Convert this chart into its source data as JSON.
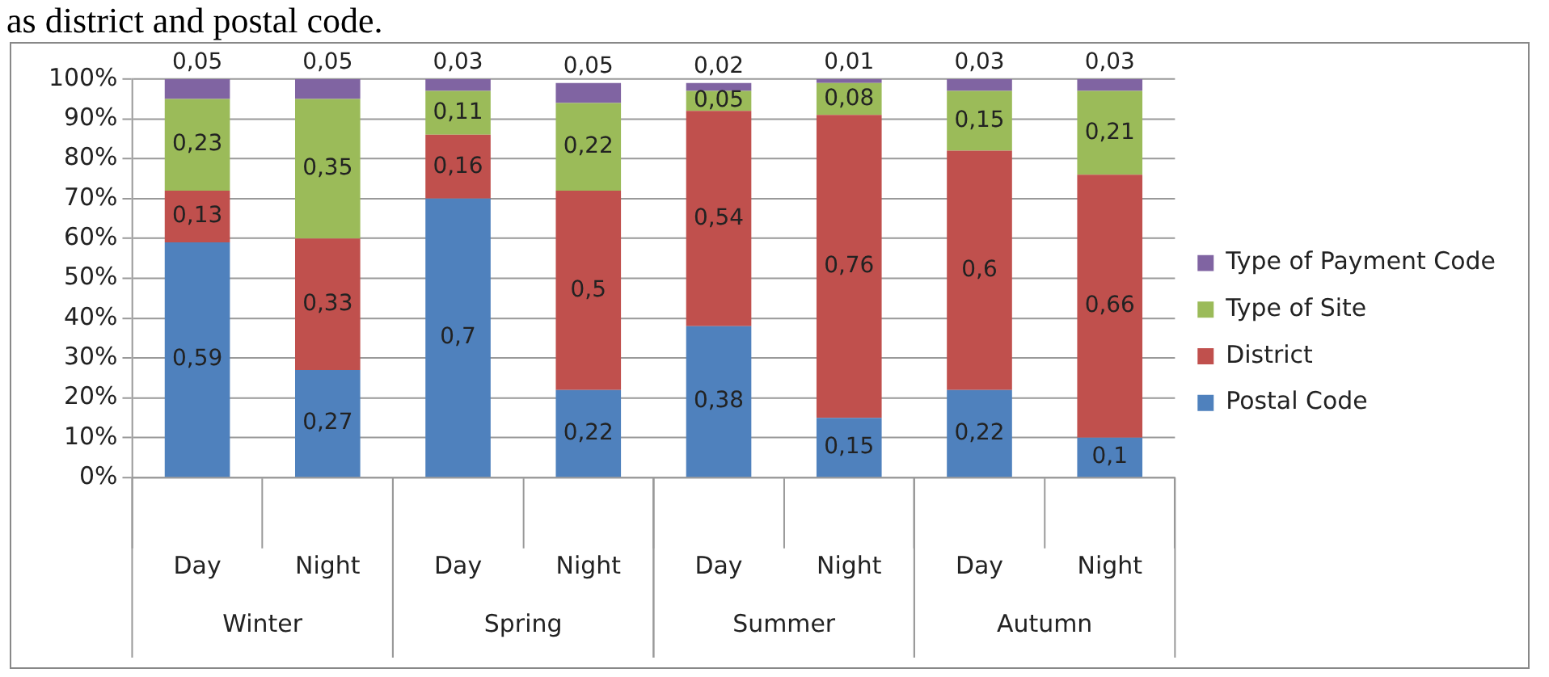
{
  "chart_data": {
    "type": "bar",
    "stacked": true,
    "title": "as district and postal code.",
    "categories": [
      "Day",
      "Night",
      "Day",
      "Night",
      "Day",
      "Night",
      "Day",
      "Night"
    ],
    "series": [
      {
        "name": "Postal Code",
        "color": "#4f81bd",
        "values": [
          0.59,
          0.27,
          0.7,
          0.22,
          0.38,
          0.15,
          0.22,
          0.1
        ],
        "value_labels": [
          "0,59",
          "0,27",
          "0,7",
          "0,22",
          "0,38",
          "0,15",
          "0,22",
          "0,1"
        ]
      },
      {
        "name": "District",
        "color": "#c0504d",
        "values": [
          0.13,
          0.33,
          0.16,
          0.5,
          0.54,
          0.76,
          0.6,
          0.66
        ],
        "value_labels": [
          "0,13",
          "0,33",
          "0,16",
          "0,5",
          "0,54",
          "0,76",
          "0,6",
          "0,66"
        ]
      },
      {
        "name": "Type of Site",
        "color": "#9bbb59",
        "values": [
          0.23,
          0.35,
          0.11,
          0.22,
          0.05,
          0.08,
          0.15,
          0.21
        ],
        "value_labels": [
          "0,23",
          "0,35",
          "0,11",
          "0,22",
          "0,05",
          "0,08",
          "0,15",
          "0,21"
        ]
      },
      {
        "name": "Type of Payment Code",
        "color": "#8064a2",
        "values": [
          0.05,
          0.05,
          0.03,
          0.05,
          0.02,
          0.01,
          0.03,
          0.03
        ],
        "value_labels": [
          "0,05",
          "0,05",
          "0,03",
          "0,05",
          "0,02",
          "0,01",
          "0,03",
          "0,03"
        ]
      }
    ],
    "ylim": [
      0,
      1
    ],
    "yticks": [
      {
        "value": 0,
        "label": "0%"
      },
      {
        "value": 0.1,
        "label": "10%"
      },
      {
        "value": 0.2,
        "label": "20%"
      },
      {
        "value": 0.3,
        "label": "30%"
      },
      {
        "value": 0.4,
        "label": "40%"
      },
      {
        "value": 0.5,
        "label": "50%"
      },
      {
        "value": 0.6,
        "label": "60%"
      },
      {
        "value": 0.7,
        "label": "70%"
      },
      {
        "value": 0.8,
        "label": "80%"
      },
      {
        "value": 0.9,
        "label": "90%"
      },
      {
        "value": 1,
        "label": "100%"
      }
    ],
    "annotations": [
      "Winter",
      "Spring",
      "Summer",
      "Autumn"
    ],
    "grid": "y",
    "legend": "right"
  }
}
